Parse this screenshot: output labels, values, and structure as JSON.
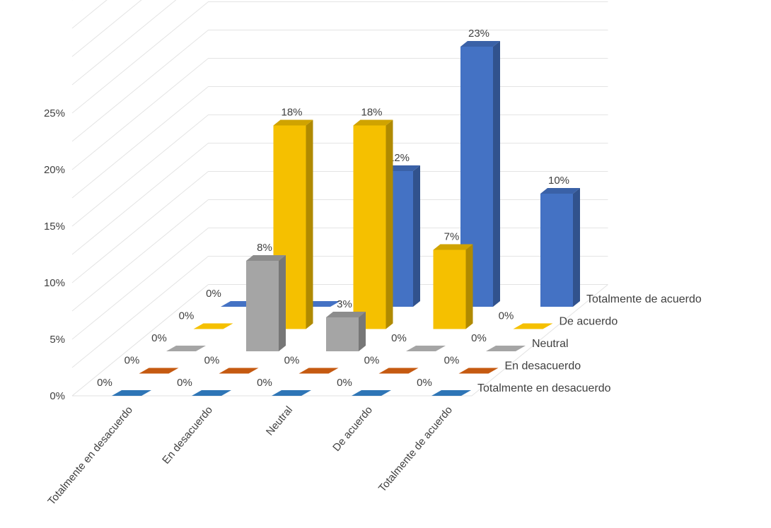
{
  "chart_data": {
    "type": "bar",
    "subtype": "3d-column",
    "title": "",
    "xlabel": "",
    "ylabel": "",
    "categories": [
      "Totalmente en desacuerdo",
      "En desacuerdo",
      "Neutral",
      "De acuerdo",
      "Totalmente de acuerdo"
    ],
    "series": [
      {
        "name": "Totalmente en desacuerdo",
        "color": "#2e75b6",
        "values": [
          0,
          0,
          0,
          0,
          0
        ],
        "labels": [
          "0%",
          "0%",
          "0%",
          "0%",
          "0%"
        ]
      },
      {
        "name": "En desacuerdo",
        "color": "#c55a11",
        "values": [
          0,
          0,
          0,
          0,
          0
        ],
        "labels": [
          "0%",
          "0%",
          "0%",
          "0%",
          "0%"
        ]
      },
      {
        "name": "Neutral",
        "color": "#a5a5a5",
        "values": [
          0,
          8,
          3,
          0,
          0
        ],
        "labels": [
          "0%",
          "8%",
          "3%",
          "0%",
          "0%"
        ]
      },
      {
        "name": "De acuerdo",
        "color": "#f5c000",
        "values": [
          0,
          18,
          18,
          7,
          0
        ],
        "labels": [
          "0%",
          "18%",
          "18%",
          "7%",
          "0%"
        ]
      },
      {
        "name": "Totalmente de acuerdo",
        "color": "#4472c4",
        "values": [
          0,
          0,
          12,
          23,
          10
        ],
        "labels": [
          "0%",
          "0%",
          "12%",
          "23%",
          "10%"
        ]
      }
    ],
    "ylim": [
      0,
      25
    ],
    "yticks": [
      "0%",
      "5%",
      "10%",
      "15%",
      "20%",
      "25%"
    ],
    "grid": true,
    "legend": "none (series labels on depth axis)"
  }
}
